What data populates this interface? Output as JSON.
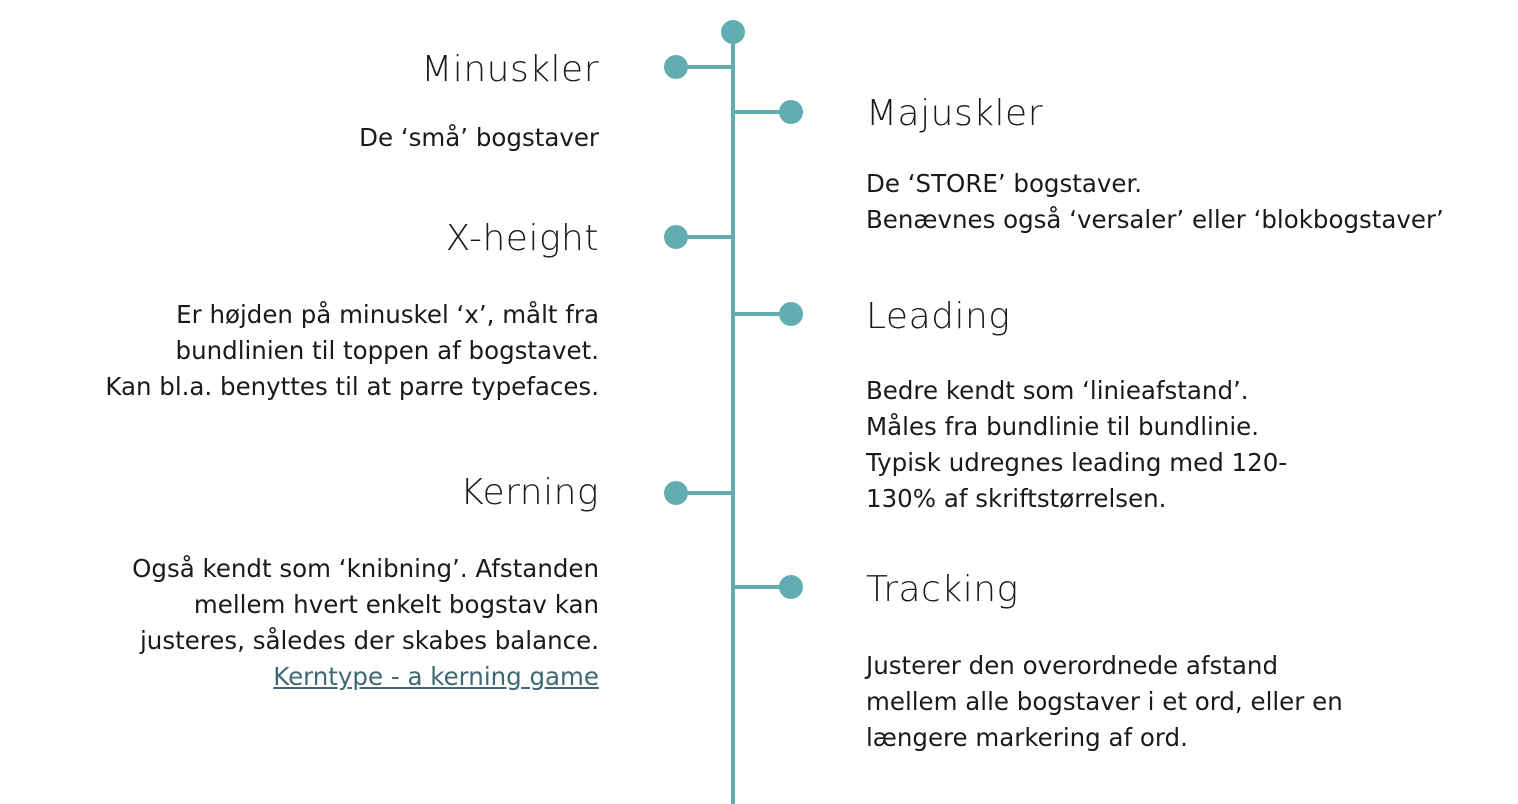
{
  "accent_color": "#62adb1",
  "link_color": "#3f6872",
  "terms": [
    {
      "title": "Minuskler",
      "description": "De ‘små’ bogstaver"
    },
    {
      "title": "Majuskler",
      "description": "De ‘STORE’ bogstaver.\nBenævnes også ‘versaler’ eller ‘blokbogstaver’"
    },
    {
      "title": "X-height",
      "description": "Er højden på minuskel ‘x’, målt fra\nbundlinien til toppen af bogstavet.\nKan bl.a. benyttes til at parre typefaces."
    },
    {
      "title": "Leading",
      "description": "Bedre kendt som ‘linieafstand’.\nMåles fra bundlinie til bundlinie.\nTypisk udregnes leading med 120-\n130% af skriftstørrelsen."
    },
    {
      "title": "Kerning",
      "description": "Også kendt som ‘knibning’. Afstanden\nmellem hvert enkelt bogstav kan\njusteres, således der skabes balance.",
      "link_text": "Kerntype - a kerning game"
    },
    {
      "title": "Tracking",
      "description": "Justerer den overordnede afstand\nmellem alle bogstaver i et ord, eller en\nlængere markering af ord."
    }
  ]
}
